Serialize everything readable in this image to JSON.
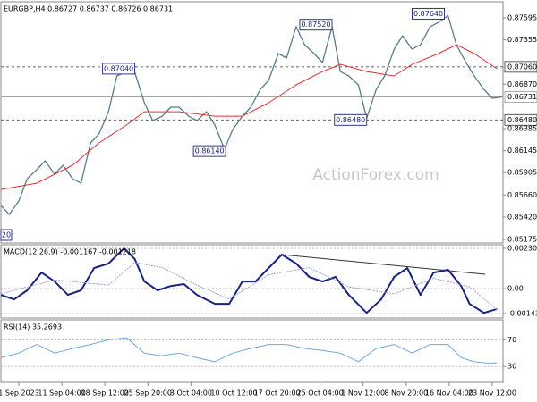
{
  "chart_data": [
    {
      "type": "line",
      "title": "EURGBP,H4 0.86727 0.86737 0.86726 0.86731",
      "watermark": "ActionForex.com",
      "xlim": [
        0,
        420
      ],
      "ylim": [
        0.85136,
        0.87771
      ],
      "yticks": [
        0.87595,
        0.87355,
        {
          "value": 0.8687,
          "label": "0.86870"
        },
        0.86385,
        0.86145,
        0.85905,
        {
          "value": 0.8566,
          "label": "0.85660"
        },
        {
          "value": 0.8542,
          "label": "0.85420"
        },
        0.85175
      ],
      "grid": false,
      "levels": [
        {
          "value": 0.8706,
          "label": "0.87060"
        },
        {
          "value": 0.8648,
          "label": "0.86480"
        }
      ],
      "current": 0.86731,
      "annotations": [
        {
          "value": 0.8704,
          "label": "0.87040",
          "x": 112
        },
        {
          "value": 0.8752,
          "label": "0.87520",
          "x": 277
        },
        {
          "value": 0.8764,
          "label": "0.87640",
          "x": 371
        },
        {
          "value": 0.8614,
          "label": "0.86140",
          "x": 188
        },
        {
          "value": 0.8648,
          "label": "0.86480",
          "x": 306
        }
      ],
      "edge_label": "20",
      "series": [
        {
          "color": "#5b7c8d",
          "x": [
            0,
            7,
            15,
            22,
            30,
            37,
            45,
            52,
            60,
            67,
            75,
            82,
            90,
            97,
            105,
            112,
            120,
            127,
            135,
            142,
            149,
            157,
            164,
            172,
            179,
            187,
            194,
            202,
            209,
            217,
            224,
            232,
            239,
            247,
            254,
            262,
            269,
            277,
            284,
            291,
            299,
            306,
            314,
            321,
            329,
            336,
            344,
            351,
            359,
            366,
            374,
            381,
            389,
            396,
            404,
            411,
            419
          ],
          "values": [
            0.85545,
            0.85448,
            0.85594,
            0.85838,
            0.85936,
            0.86033,
            0.85887,
            0.85985,
            0.85838,
            0.85789,
            0.86229,
            0.86326,
            0.8657,
            0.86961,
            0.87009,
            0.87,
            0.86668,
            0.86473,
            0.86521,
            0.86619,
            0.86619,
            0.86521,
            0.86473,
            0.8657,
            0.86424,
            0.8616,
            0.86375,
            0.86521,
            0.86619,
            0.86814,
            0.86912,
            0.87205,
            0.87156,
            0.875,
            0.87302,
            0.87205,
            0.87107,
            0.875,
            0.87009,
            0.86961,
            0.86863,
            0.865,
            0.86814,
            0.86961,
            0.87253,
            0.874,
            0.87253,
            0.87302,
            0.87497,
            0.87546,
            0.8762,
            0.87302,
            0.87107,
            0.86961,
            0.86814,
            0.86717,
            0.86731
          ]
        },
        {
          "color": "#e03030",
          "x": [
            0,
            30,
            60,
            82,
            105,
            120,
            149,
            179,
            202,
            224,
            247,
            269,
            284,
            306,
            329,
            344,
            366,
            381,
            396,
            415
          ],
          "values": [
            0.85721,
            0.85789,
            0.85985,
            0.86229,
            0.86424,
            0.8657,
            0.8657,
            0.86521,
            0.86521,
            0.86668,
            0.86863,
            0.87009,
            0.87087,
            0.87009,
            0.86961,
            0.87087,
            0.87205,
            0.87302,
            0.87205,
            0.87039
          ]
        }
      ]
    },
    {
      "type": "line",
      "title": "MACD(12,26,9) -0.001167 -0.001218",
      "xlim": [
        0,
        420
      ],
      "ylim": [
        -0.001685,
        0.002513
      ],
      "yticks": [
        0.002308,
        {
          "value": 0,
          "label": "0.00"
        },
        -0.00143
      ],
      "grid": true,
      "series": [
        {
          "color": "#1a237e",
          "x": [
            0,
            11,
            22,
            34,
            45,
            56,
            67,
            78,
            90,
            103,
            112,
            120,
            131,
            142,
            153,
            164,
            179,
            191,
            202,
            213,
            224,
            235,
            247,
            258,
            269,
            280,
            291,
            306,
            318,
            329,
            340,
            351,
            362,
            374,
            385,
            392,
            404,
            415
          ],
          "values": [
            -0.00036,
            -0.00062,
            -0.0001,
            0.00092,
            0.00041,
            -0.00036,
            -0.0001,
            0.00118,
            0.00144,
            0.002308,
            0.00169,
            0.00041,
            -0.0001,
            0.00015,
            0.00026,
            -0.00036,
            -0.00087,
            -0.00087,
            0.00041,
            0.00041,
            0.00118,
            0.00195,
            0.00144,
            0.00067,
            0.00041,
            0.00067,
            -0.00036,
            -0.00139,
            -0.00062,
            0.00067,
            0.00118,
            -0.00036,
            0.00092,
            0.00108,
            0.00015,
            -0.00087,
            -0.00139,
            -0.001167
          ]
        },
        {
          "color": "#9a9ad6",
          "x": [
            0,
            45,
            90,
            112,
            135,
            164,
            191,
            224,
            258,
            291,
            329,
            362,
            392,
            415
          ],
          "values": [
            -0.0003,
            0.0005,
            0.0002,
            0.0015,
            0.0012,
            0.0002,
            -0.0006,
            0.0008,
            0.0012,
            0.0001,
            -0.0003,
            0.0006,
            0.0001,
            -0.001218
          ]
        }
      ]
    },
    {
      "type": "line",
      "title": "RSI(14) 35.2693",
      "xlim": [
        0,
        420
      ],
      "ylim": [
        6,
        100
      ],
      "yticks": [
        70,
        30
      ],
      "grid": true,
      "xticks": [
        {
          "value": 15,
          "label": "1 Sep 2023"
        },
        {
          "value": 51,
          "label": "11 Sep 04:00"
        },
        {
          "value": 87,
          "label": "18 Sep 12:00"
        },
        {
          "value": 123,
          "label": "25 Sep 20:00"
        },
        {
          "value": 159,
          "label": "3 Oct 04:00"
        },
        {
          "value": 195,
          "label": "10 Oct 12:00"
        },
        {
          "value": 231,
          "label": "17 Oct 20:00"
        },
        {
          "value": 267,
          "label": "25 Oct 04:00"
        },
        {
          "value": 303,
          "label": "1 Nov 12:00"
        },
        {
          "value": 339,
          "label": "8 Nov 20:00"
        },
        {
          "value": 375,
          "label": "16 Nov 04:00"
        },
        {
          "value": 411,
          "label": "23 Nov 12:00"
        }
      ],
      "series": [
        {
          "color": "#6fa8dc",
          "x": [
            0,
            15,
            30,
            45,
            60,
            75,
            90,
            105,
            120,
            134,
            149,
            164,
            179,
            194,
            209,
            224,
            239,
            254,
            269,
            284,
            299,
            314,
            329,
            344,
            359,
            374,
            385,
            396,
            407,
            415
          ],
          "values": [
            43,
            50,
            63,
            50,
            57,
            63,
            70,
            73,
            50,
            46,
            50,
            43,
            37,
            50,
            57,
            63,
            63,
            57,
            54,
            50,
            37,
            57,
            63,
            50,
            63,
            63,
            43,
            37,
            35,
            35.2693
          ]
        }
      ]
    }
  ]
}
